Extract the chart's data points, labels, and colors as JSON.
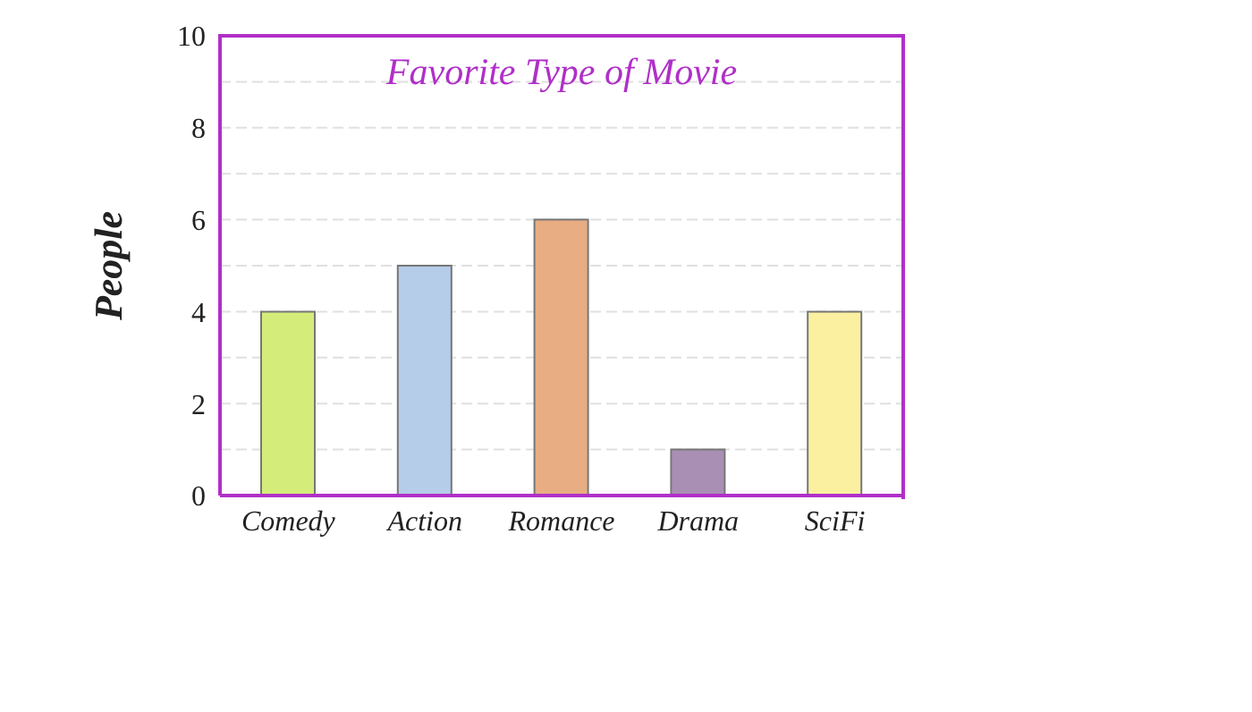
{
  "chart_data": {
    "type": "bar",
    "title": "Favorite Type of Movie",
    "ylabel": "People",
    "categories": [
      "Comedy",
      "Action",
      "Romance",
      "Drama",
      "SciFi"
    ],
    "values": [
      4,
      5,
      6,
      1,
      4
    ],
    "colors": [
      "#d4ec7a",
      "#b5cde8",
      "#e8ad82",
      "#a98fb4",
      "#fbf0a0"
    ],
    "ylim": [
      0,
      10
    ],
    "yticks": [
      0,
      {
        "value": 1,
        "label": null
      },
      2,
      {
        "value": 3,
        "label": null
      },
      4,
      {
        "value": 5,
        "label": null
      },
      6,
      {
        "value": 7,
        "label": null
      },
      8,
      {
        "value": 9,
        "label": null
      },
      10
    ],
    "grid": "y"
  }
}
